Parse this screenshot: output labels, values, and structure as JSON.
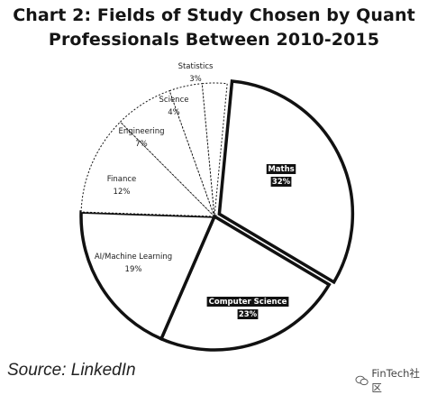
{
  "chart_data": {
    "type": "pie",
    "title_lines": [
      "Chart 2: Fields of Study Chosen by Quant",
      "Professionals Between 2010-2015"
    ],
    "labels": [
      "Maths",
      "Computer Science",
      "AI/Machine Learning",
      "Finance",
      "Engineering",
      "Science",
      "Statistics"
    ],
    "values": [
      32,
      23,
      19,
      12,
      7,
      4,
      3
    ],
    "value_labels": [
      "32%",
      "23%",
      "19%",
      "12%",
      "7%",
      "4%",
      "3%"
    ],
    "highlighted": [
      "Maths",
      "Computer Science"
    ],
    "colors": {
      "fill": "#ffffff",
      "edge": "#111111",
      "highlight_label_bg": "#111111"
    }
  },
  "source": "Source: LinkedIn",
  "watermark": {
    "text": "FinTech社区",
    "icon": "wechat-icon"
  }
}
